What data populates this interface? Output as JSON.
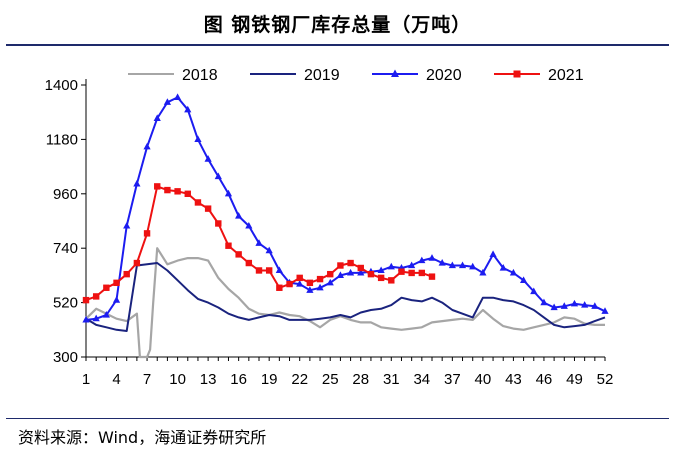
{
  "header": {
    "title": "图  钢铁钢厂库存总量（万吨）"
  },
  "footer": {
    "source": "资料来源：Wind，海通证券研究所"
  },
  "chart_data": {
    "type": "line",
    "title": "钢铁钢厂库存总量（万吨）",
    "xlabel": "",
    "ylabel": "",
    "xlim": [
      1,
      52
    ],
    "ylim": [
      300,
      1400
    ],
    "yticks": [
      300,
      520,
      740,
      960,
      1180,
      1400
    ],
    "xticks": [
      1,
      4,
      7,
      10,
      13,
      16,
      19,
      22,
      25,
      28,
      31,
      34,
      37,
      40,
      43,
      46,
      49,
      52
    ],
    "legend_position": "top",
    "series": [
      {
        "name": "2018",
        "color": "#a6a6a6",
        "marker": "none",
        "x": [
          1,
          2,
          3,
          4,
          5,
          6,
          6.3,
          7,
          7.3,
          7.6,
          8,
          9,
          10,
          11,
          12,
          13,
          14,
          15,
          16,
          17,
          18,
          19,
          20,
          21,
          22,
          23,
          24,
          25,
          26,
          27,
          28,
          29,
          30,
          31,
          32,
          33,
          34,
          35,
          36,
          37,
          38,
          39,
          40,
          41,
          42,
          43,
          44,
          45,
          46,
          47,
          48,
          49,
          50,
          51,
          52
        ],
        "values": [
          455,
          495,
          475,
          455,
          445,
          475,
          300,
          300,
          330,
          520,
          740,
          675,
          690,
          700,
          700,
          690,
          620,
          575,
          540,
          495,
          475,
          470,
          480,
          470,
          465,
          445,
          420,
          450,
          465,
          450,
          440,
          440,
          420,
          415,
          410,
          415,
          420,
          440,
          445,
          450,
          455,
          450,
          490,
          455,
          425,
          415,
          410,
          420,
          430,
          440,
          460,
          455,
          435,
          430,
          430
        ]
      },
      {
        "name": "2019",
        "color": "#1a237e",
        "marker": "none",
        "x": [
          1,
          2,
          3,
          4,
          5,
          6,
          7,
          8,
          9,
          10,
          11,
          12,
          13,
          14,
          15,
          16,
          17,
          18,
          19,
          20,
          21,
          22,
          23,
          24,
          25,
          26,
          27,
          28,
          29,
          30,
          31,
          32,
          33,
          34,
          35,
          36,
          37,
          38,
          39,
          40,
          41,
          42,
          43,
          44,
          45,
          46,
          47,
          48,
          49,
          50,
          51,
          52
        ],
        "values": [
          455,
          430,
          420,
          410,
          405,
          670,
          675,
          680,
          650,
          610,
          570,
          535,
          520,
          500,
          475,
          460,
          450,
          460,
          470,
          465,
          450,
          450,
          450,
          455,
          460,
          470,
          460,
          480,
          490,
          495,
          510,
          540,
          530,
          525,
          540,
          520,
          490,
          475,
          460,
          540,
          540,
          530,
          525,
          510,
          490,
          460,
          430,
          420,
          425,
          430,
          445,
          460
        ]
      },
      {
        "name": "2020",
        "color": "#1c1cf0",
        "marker": "triangle",
        "x": [
          1,
          2,
          3,
          4,
          5,
          6,
          7,
          8,
          9,
          10,
          11,
          12,
          13,
          14,
          15,
          16,
          17,
          18,
          19,
          20,
          21,
          22,
          23,
          24,
          25,
          26,
          27,
          28,
          29,
          30,
          31,
          32,
          33,
          34,
          35,
          36,
          37,
          38,
          39,
          40,
          41,
          42,
          43,
          44,
          45,
          46,
          47,
          48,
          49,
          50,
          51,
          52
        ],
        "values": [
          450,
          455,
          470,
          530,
          830,
          1000,
          1150,
          1265,
          1330,
          1350,
          1300,
          1180,
          1100,
          1030,
          960,
          870,
          830,
          760,
          730,
          650,
          600,
          595,
          570,
          580,
          600,
          630,
          640,
          640,
          645,
          650,
          665,
          660,
          670,
          690,
          700,
          680,
          670,
          670,
          665,
          640,
          715,
          660,
          640,
          610,
          565,
          520,
          500,
          505,
          515,
          510,
          505,
          485
        ]
      },
      {
        "name": "2021",
        "color": "#ee1111",
        "marker": "square",
        "x": [
          1,
          2,
          3,
          4,
          5,
          6,
          7,
          8,
          9,
          10,
          11,
          12,
          13,
          14,
          15,
          16,
          17,
          18,
          19,
          20,
          21,
          22,
          23,
          24,
          25,
          26,
          27,
          28,
          29,
          30,
          31,
          32,
          33,
          34,
          35
        ],
        "values": [
          530,
          545,
          580,
          600,
          635,
          680,
          800,
          990,
          975,
          970,
          960,
          925,
          900,
          840,
          750,
          715,
          680,
          650,
          650,
          580,
          595,
          620,
          600,
          615,
          635,
          670,
          680,
          660,
          635,
          620,
          610,
          645,
          640,
          640,
          625
        ]
      }
    ]
  }
}
